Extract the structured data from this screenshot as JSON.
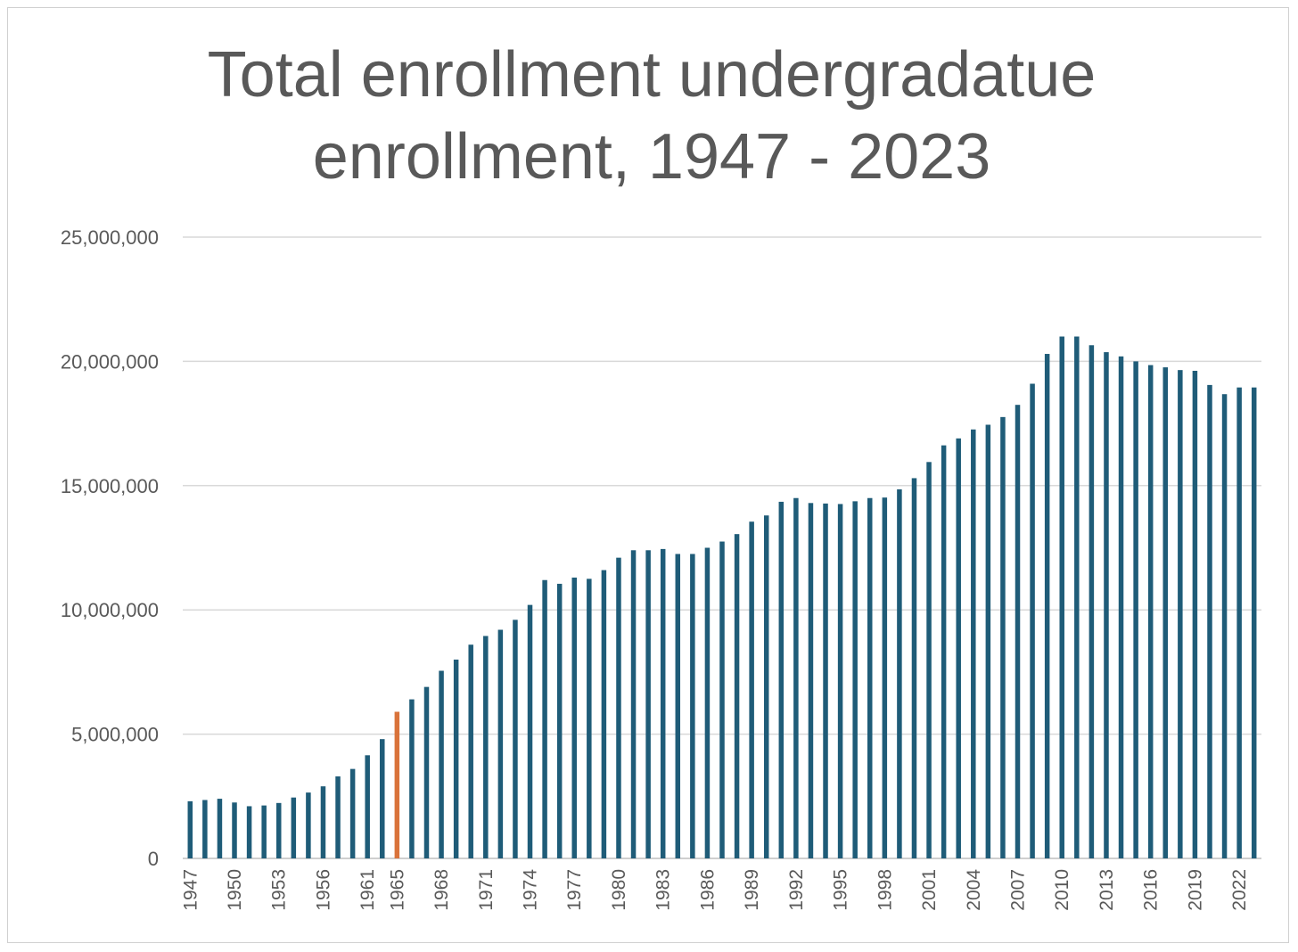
{
  "chart_data": {
    "type": "bar",
    "title_line1": "Total enrollment undergradatue",
    "title_line2": "enrollment, 1947 - 2023",
    "ylim": [
      0,
      25000000
    ],
    "yticks": [
      "0",
      "5,000,000",
      "10,000,000",
      "15,000,000",
      "20,000,000",
      "25,000,000"
    ],
    "ytick_values": [
      0,
      5000000,
      10000000,
      15000000,
      20000000,
      25000000
    ],
    "grid": true,
    "legend": "none",
    "bar_color": "#1F5C78",
    "highlight_color": "#D9733B",
    "highlight_category": "1965",
    "categories": [
      "1947",
      "1948",
      "1949",
      "1950",
      "1951",
      "1952",
      "1953",
      "1954",
      "1955",
      "1956",
      "1957",
      "1959",
      "1961",
      "1963",
      "1965",
      "1966",
      "1967",
      "1968",
      "1969",
      "1970",
      "1971",
      "1972",
      "1973",
      "1974",
      "1975",
      "1976",
      "1977",
      "1978",
      "1979",
      "1980",
      "1981",
      "1982",
      "1983",
      "1984",
      "1985",
      "1986",
      "1987",
      "1988",
      "1989",
      "1990",
      "1991",
      "1992",
      "1993",
      "1994",
      "1995",
      "1996",
      "1997",
      "1998",
      "1999",
      "2000",
      "2001",
      "2002",
      "2003",
      "2004",
      "2005",
      "2006",
      "2007",
      "2008",
      "2009",
      "2010",
      "2011",
      "2012",
      "2013",
      "2014",
      "2015",
      "2016",
      "2017",
      "2018",
      "2019",
      "2020",
      "2021",
      "2022",
      "2023"
    ],
    "x_tick_labels": [
      "1947",
      "1950",
      "1953",
      "1956",
      "1961",
      "1965",
      "1968",
      "1971",
      "1974",
      "1977",
      "1980",
      "1983",
      "1986",
      "1989",
      "1992",
      "1995",
      "1998",
      "2001",
      "2004",
      "2007",
      "2010",
      "2013",
      "2016",
      "2019",
      "2022"
    ],
    "values": [
      2300000,
      2350000,
      2400000,
      2250000,
      2100000,
      2130000,
      2230000,
      2450000,
      2650000,
      2900000,
      3300000,
      3600000,
      4150000,
      4800000,
      5900000,
      6400000,
      6900000,
      7550000,
      8000000,
      8600000,
      8950000,
      9200000,
      9600000,
      10200000,
      11200000,
      11050000,
      11300000,
      11250000,
      11600000,
      12100000,
      12400000,
      12400000,
      12450000,
      12250000,
      12250000,
      12500000,
      12750000,
      13050000,
      13550000,
      13800000,
      14350000,
      14500000,
      14300000,
      14280000,
      14260000,
      14370000,
      14500000,
      14520000,
      14850000,
      15300000,
      15950000,
      16620000,
      16900000,
      17260000,
      17450000,
      17760000,
      18250000,
      19100000,
      20300000,
      21000000,
      21000000,
      20650000,
      20370000,
      20200000,
      20000000,
      19850000,
      19760000,
      19650000,
      19620000,
      19050000,
      18680000,
      18950000,
      18950000
    ]
  }
}
